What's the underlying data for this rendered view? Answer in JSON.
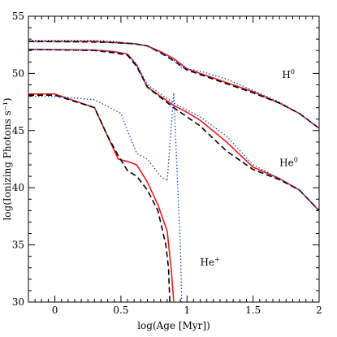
{
  "chart_data": {
    "type": "line",
    "xlabel": "log(Age [Myr])",
    "ylabel": "log(Ionizing Photons s⁻¹)",
    "xlim": [
      -0.2,
      2.0
    ],
    "ylim": [
      30,
      55
    ],
    "xticks": [
      0,
      0.5,
      1,
      1.5,
      2
    ],
    "xtick_labels": [
      "0",
      "0.5",
      "1",
      "1.5",
      "2"
    ],
    "yticks": [
      30,
      35,
      40,
      45,
      50,
      55
    ],
    "ytick_labels": [
      "30",
      "35",
      "40",
      "45",
      "50",
      "55"
    ],
    "grid": false,
    "legend": "none",
    "annotations": [
      {
        "base": "H",
        "sup": "0",
        "x": 1.72,
        "y": 49.6
      },
      {
        "base": "He",
        "sup": "0",
        "x": 1.7,
        "y": 41.9
      },
      {
        "base": "He",
        "sup": "+",
        "x": 1.1,
        "y": 33.2
      }
    ],
    "series": [
      {
        "group": "H0",
        "style": "solid",
        "color": "#e41a1c",
        "x": [
          -0.2,
          0.3,
          0.45,
          0.6,
          0.7,
          0.8,
          0.9,
          1.0,
          1.1,
          1.3,
          1.5,
          1.7,
          1.85,
          2.0
        ],
        "y": [
          52.8,
          52.8,
          52.7,
          52.6,
          52.4,
          51.9,
          51.3,
          50.4,
          50.0,
          49.2,
          48.4,
          47.4,
          46.5,
          45.2
        ]
      },
      {
        "group": "H0",
        "style": "dashed",
        "color": "#000000",
        "x": [
          -0.2,
          0.3,
          0.45,
          0.6,
          0.7,
          0.8,
          0.9,
          1.0,
          1.1,
          1.3,
          1.5,
          1.7,
          1.85,
          2.0
        ],
        "y": [
          52.8,
          52.75,
          52.7,
          52.6,
          52.4,
          51.8,
          51.1,
          50.3,
          49.9,
          49.1,
          48.3,
          47.4,
          46.5,
          45.2
        ]
      },
      {
        "group": "H0",
        "style": "dotted",
        "color": "#1f3fcf",
        "x": [
          -0.2,
          0.3,
          0.45,
          0.6,
          0.7,
          0.8,
          0.88,
          0.95,
          1.0,
          1.1,
          1.3,
          1.5,
          1.7,
          1.85,
          2.0
        ],
        "y": [
          52.9,
          52.9,
          52.8,
          52.6,
          52.4,
          51.8,
          51.4,
          50.6,
          50.4,
          50.2,
          49.5,
          48.5,
          47.5,
          46.5,
          45.2
        ]
      },
      {
        "group": "He0",
        "style": "solid",
        "color": "#e41a1c",
        "x": [
          -0.2,
          0.3,
          0.45,
          0.55,
          0.62,
          0.7,
          0.8,
          0.9,
          1.0,
          1.1,
          1.3,
          1.5,
          1.7,
          1.85,
          2.0
        ],
        "y": [
          52.1,
          52.05,
          51.9,
          51.7,
          50.7,
          48.8,
          48.0,
          47.2,
          46.6,
          45.9,
          44.0,
          41.8,
          40.8,
          39.8,
          38.0
        ]
      },
      {
        "group": "He0",
        "style": "dashed",
        "color": "#000000",
        "x": [
          -0.2,
          0.3,
          0.45,
          0.55,
          0.62,
          0.7,
          0.8,
          0.9,
          1.0,
          1.1,
          1.3,
          1.5,
          1.7,
          1.85,
          2.0
        ],
        "y": [
          52.1,
          52.0,
          51.8,
          51.6,
          50.6,
          48.8,
          47.9,
          47.0,
          46.2,
          45.4,
          43.2,
          41.6,
          40.7,
          39.8,
          38.0
        ]
      },
      {
        "group": "He0",
        "style": "dotted",
        "color": "#1f3fcf",
        "x": [
          -0.2,
          0.3,
          0.45,
          0.55,
          0.62,
          0.7,
          0.8,
          0.9,
          1.0,
          1.1,
          1.3,
          1.5,
          1.7,
          1.85,
          2.0
        ],
        "y": [
          52.1,
          52.0,
          51.9,
          51.7,
          50.8,
          49.0,
          48.2,
          47.4,
          46.8,
          46.2,
          44.5,
          42.0,
          40.8,
          39.8,
          38.0
        ]
      },
      {
        "group": "He+",
        "style": "solid",
        "color": "#e41a1c",
        "x": [
          -0.2,
          0.0,
          0.3,
          0.4,
          0.48,
          0.55,
          0.62,
          0.7,
          0.78,
          0.85,
          0.88,
          0.9
        ],
        "y": [
          48.2,
          48.2,
          47.0,
          44.5,
          42.5,
          42.3,
          42.0,
          40.5,
          38.5,
          36.2,
          33.0,
          30.0
        ]
      },
      {
        "group": "He+",
        "style": "dashed",
        "color": "#000000",
        "x": [
          -0.2,
          0.0,
          0.3,
          0.4,
          0.48,
          0.55,
          0.62,
          0.7,
          0.78,
          0.84,
          0.86,
          0.87
        ],
        "y": [
          48.1,
          48.1,
          47.0,
          44.5,
          42.8,
          41.5,
          41.0,
          39.8,
          38.0,
          35.0,
          33.0,
          30.0
        ]
      },
      {
        "group": "He+",
        "style": "dotted",
        "color": "#1f3fcf",
        "x": [
          -0.2,
          0.0,
          0.3,
          0.45,
          0.5,
          0.55,
          0.62,
          0.7,
          0.8,
          0.85,
          0.9,
          0.93,
          0.95,
          0.96
        ],
        "y": [
          48.0,
          48.0,
          47.7,
          46.8,
          46.5,
          45.0,
          43.0,
          42.5,
          41.0,
          40.6,
          48.3,
          40.0,
          35.0,
          30.0
        ]
      }
    ]
  }
}
